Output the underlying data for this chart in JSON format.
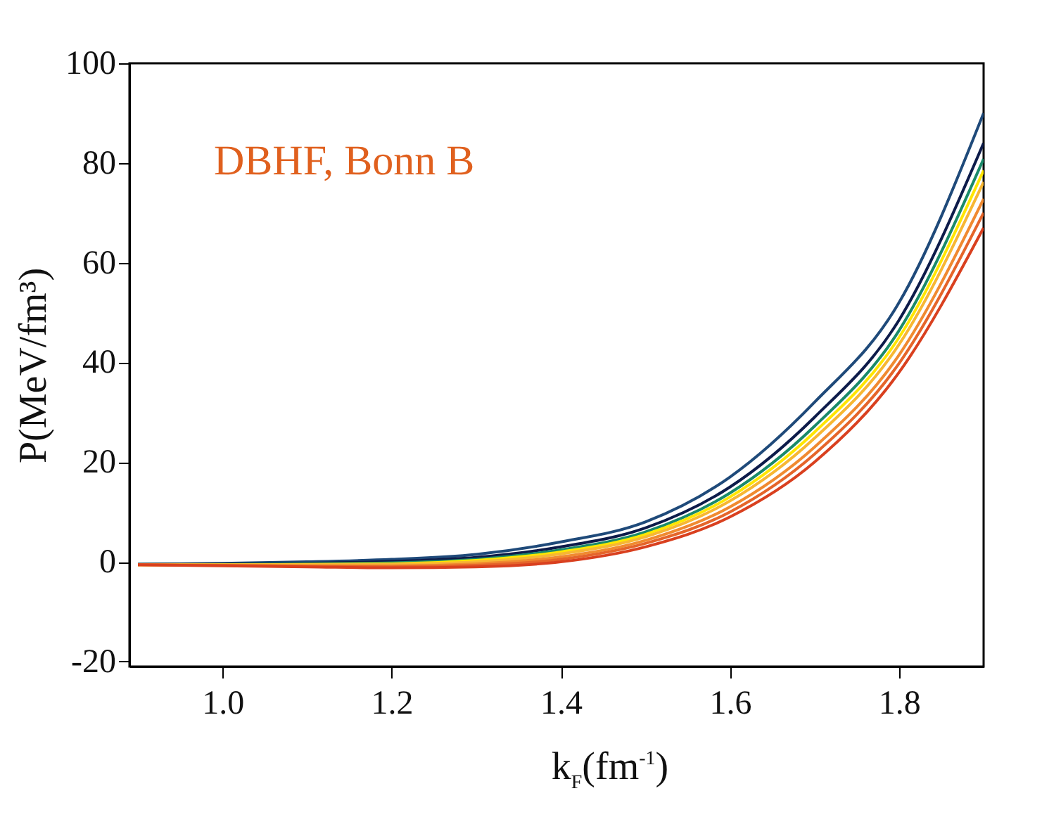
{
  "chart_data": {
    "type": "line",
    "annotations": [
      "DBHF, Bonn B"
    ],
    "xlabel": "k$_{F}$(fm$^{-1}$)",
    "ylabel": "P(MeV/fm³)",
    "x": [
      0.9,
      1.0,
      1.1,
      1.2,
      1.3,
      1.4,
      1.5,
      1.6,
      1.7,
      1.8,
      1.9
    ],
    "series": [
      {
        "color": "#1f4a7a",
        "values": [
          -0.5,
          -0.3,
          0,
          0.5,
          1.5,
          4,
          8,
          17,
          32,
          52,
          90
        ]
      },
      {
        "color": "#0d1b4a",
        "values": [
          -0.5,
          -0.4,
          -0.3,
          0.1,
          0.9,
          3,
          6.8,
          15,
          29,
          48.5,
          84
        ]
      },
      {
        "color": "#1a8a6a",
        "values": [
          -0.5,
          -0.5,
          -0.4,
          -0.2,
          0.5,
          2.4,
          6,
          13.8,
          27.2,
          46.4,
          80.8
        ]
      },
      {
        "color": "#ffe600",
        "values": [
          -0.6,
          -0.6,
          -0.5,
          -0.4,
          0.3,
          2,
          5.5,
          13,
          26,
          45,
          78.5
        ]
      },
      {
        "color": "#f7b733",
        "values": [
          -0.6,
          -0.6,
          -0.6,
          -0.5,
          0,
          1.6,
          5,
          12.2,
          24.8,
          43.6,
          76.2
        ]
      },
      {
        "color": "#f08a30",
        "values": [
          -0.6,
          -0.7,
          -0.8,
          -0.8,
          -0.4,
          1,
          4.3,
          11,
          23,
          41.5,
          72.8
        ]
      },
      {
        "color": "#e5652a",
        "values": [
          -0.6,
          -0.7,
          -0.9,
          -1,
          -0.7,
          0.5,
          3.7,
          10,
          21.6,
          39.8,
          70
        ]
      },
      {
        "color": "#d9401f",
        "values": [
          -0.6,
          -0.8,
          -1,
          -1.2,
          -1,
          0,
          3,
          9,
          20,
          38,
          67
        ]
      }
    ],
    "xlim": [
      0.89,
      1.9
    ],
    "ylim": [
      -21,
      100
    ],
    "xticks": [
      {
        "value": 1.0,
        "label": "1.0"
      },
      1.2,
      1.4,
      1.6,
      1.8
    ],
    "yticks": [
      -20,
      0,
      20,
      40,
      60,
      80,
      100
    ],
    "grid": false,
    "legend": false
  }
}
